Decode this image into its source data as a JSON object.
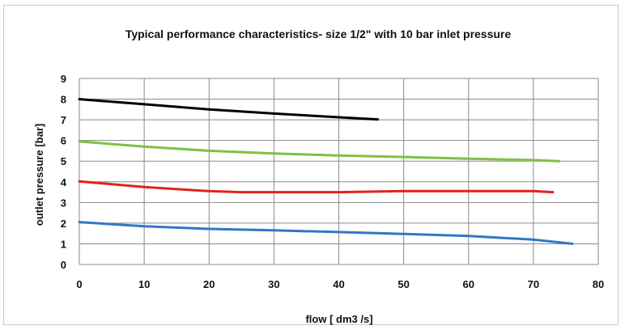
{
  "chart_data": {
    "type": "line",
    "title": "Typical performance characteristics- size 1/2\" with 10 bar inlet pressure",
    "xlabel": "flow [ dm3 /s]",
    "ylabel": "outlet pressure [bar]",
    "xlim": [
      0,
      80
    ],
    "ylim": [
      0,
      9
    ],
    "x_ticks": [
      0,
      10,
      20,
      30,
      40,
      50,
      60,
      70,
      80
    ],
    "y_ticks": [
      0,
      1,
      2,
      3,
      4,
      5,
      6,
      7,
      8,
      9
    ],
    "grid": true,
    "legend": "none",
    "series": [
      {
        "color": "#000000",
        "points": [
          [
            0,
            8.0
          ],
          [
            10,
            7.75
          ],
          [
            20,
            7.5
          ],
          [
            30,
            7.3
          ],
          [
            40,
            7.12
          ],
          [
            46,
            7.02
          ]
        ]
      },
      {
        "color": "#7dc143",
        "points": [
          [
            0,
            5.95
          ],
          [
            10,
            5.7
          ],
          [
            20,
            5.5
          ],
          [
            30,
            5.37
          ],
          [
            40,
            5.27
          ],
          [
            50,
            5.2
          ],
          [
            60,
            5.12
          ],
          [
            70,
            5.05
          ],
          [
            74,
            5.0
          ]
        ]
      },
      {
        "color": "#e0231b",
        "points": [
          [
            0,
            4.02
          ],
          [
            10,
            3.75
          ],
          [
            20,
            3.55
          ],
          [
            25,
            3.5
          ],
          [
            40,
            3.5
          ],
          [
            50,
            3.55
          ],
          [
            60,
            3.55
          ],
          [
            70,
            3.55
          ],
          [
            73,
            3.5
          ]
        ]
      },
      {
        "color": "#2f78c4",
        "points": [
          [
            0,
            2.05
          ],
          [
            10,
            1.85
          ],
          [
            20,
            1.72
          ],
          [
            30,
            1.65
          ],
          [
            40,
            1.57
          ],
          [
            50,
            1.48
          ],
          [
            60,
            1.38
          ],
          [
            70,
            1.2
          ],
          [
            76,
            1.0
          ]
        ]
      }
    ]
  }
}
